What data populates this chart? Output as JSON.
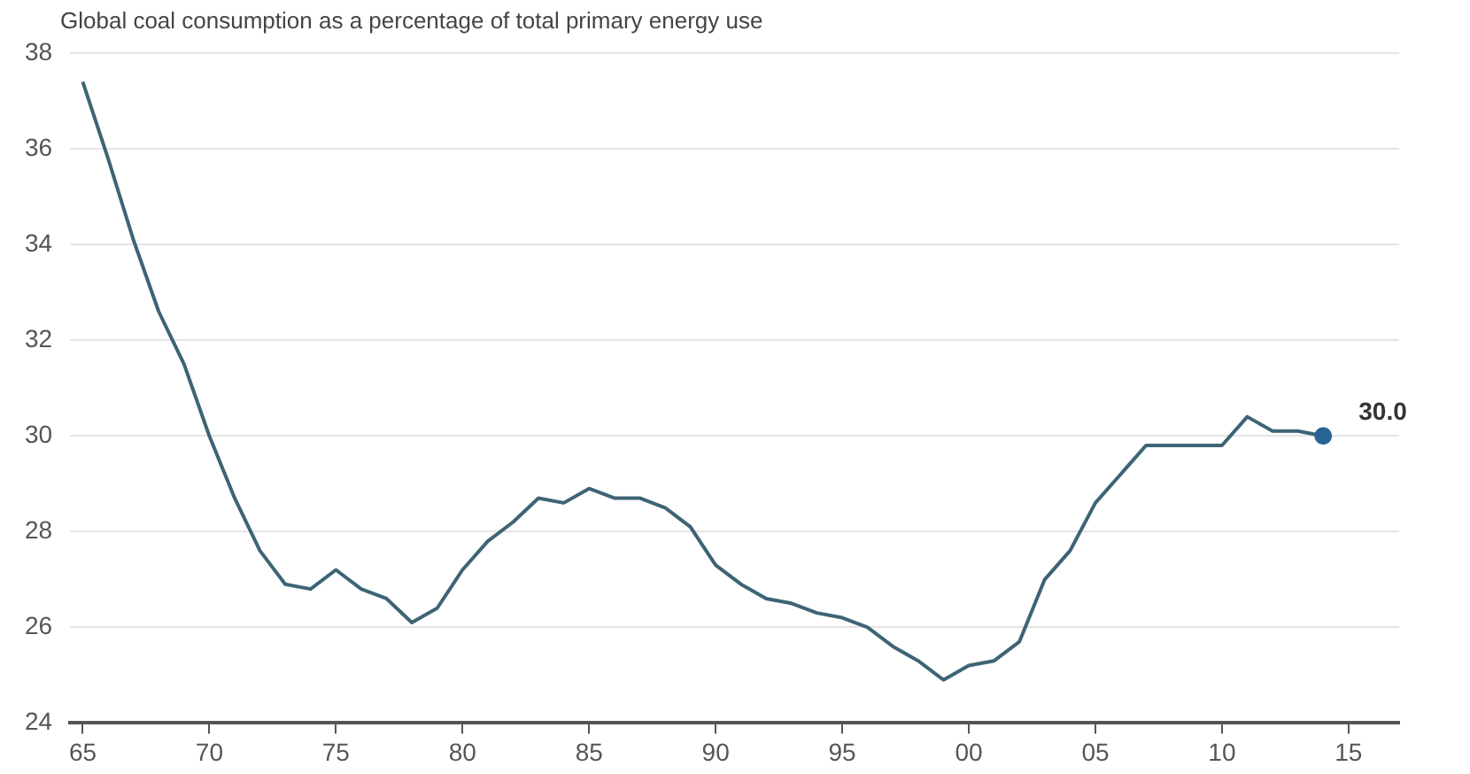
{
  "chart_data": {
    "type": "line",
    "title": "Global coal consumption as a percentage of total primary energy use",
    "x": [
      1965,
      1966,
      1967,
      1968,
      1969,
      1970,
      1971,
      1972,
      1973,
      1974,
      1975,
      1976,
      1977,
      1978,
      1979,
      1980,
      1981,
      1982,
      1983,
      1984,
      1985,
      1986,
      1987,
      1988,
      1989,
      1990,
      1991,
      1992,
      1993,
      1994,
      1995,
      1996,
      1997,
      1998,
      1999,
      2000,
      2001,
      2002,
      2003,
      2004,
      2005,
      2006,
      2007,
      2008,
      2009,
      2010,
      2011,
      2012,
      2013,
      2014
    ],
    "series": [
      {
        "color": "#3d6475",
        "values": [
          37.4,
          35.8,
          34.1,
          32.6,
          31.5,
          30.0,
          28.7,
          27.6,
          26.9,
          26.8,
          27.2,
          26.8,
          26.6,
          26.1,
          26.4,
          27.2,
          27.8,
          28.2,
          28.7,
          28.6,
          28.9,
          28.7,
          28.7,
          28.5,
          28.1,
          27.3,
          26.9,
          26.6,
          26.5,
          26.3,
          26.2,
          26.0,
          25.6,
          25.3,
          24.9,
          25.2,
          25.3,
          25.7,
          27.0,
          27.6,
          28.6,
          29.2,
          29.8,
          29.8,
          29.8,
          29.8,
          30.4,
          30.1,
          30.1,
          30.0
        ],
        "value_labels": [
          null,
          null,
          null,
          null,
          null,
          null,
          null,
          null,
          null,
          null,
          null,
          null,
          null,
          null,
          null,
          null,
          null,
          null,
          null,
          null,
          null,
          null,
          null,
          null,
          null,
          null,
          null,
          null,
          null,
          null,
          null,
          null,
          null,
          null,
          null,
          null,
          null,
          null,
          null,
          null,
          null,
          null,
          null,
          null,
          null,
          null,
          null,
          null,
          null,
          "30.0"
        ]
      }
    ],
    "xlim": [
      1964.5,
      2017
    ],
    "xticks": [
      {
        "value": 1965,
        "label": "65"
      },
      {
        "value": 1970,
        "label": "70"
      },
      {
        "value": 1975,
        "label": "75"
      },
      {
        "value": 1980,
        "label": "80"
      },
      {
        "value": 1985,
        "label": "85"
      },
      {
        "value": 1990,
        "label": "90"
      },
      {
        "value": 1995,
        "label": "95"
      },
      {
        "value": 2000,
        "label": "00"
      },
      {
        "value": 2005,
        "label": "05"
      },
      {
        "value": 2010,
        "label": "10"
      },
      {
        "value": 2015,
        "label": "15"
      }
    ],
    "ylim": [
      24,
      38
    ],
    "yticks": [
      24,
      26,
      28,
      30,
      32,
      34,
      36,
      38
    ],
    "grid": "y",
    "legend": false,
    "marker": "none",
    "line_style": "solid"
  }
}
